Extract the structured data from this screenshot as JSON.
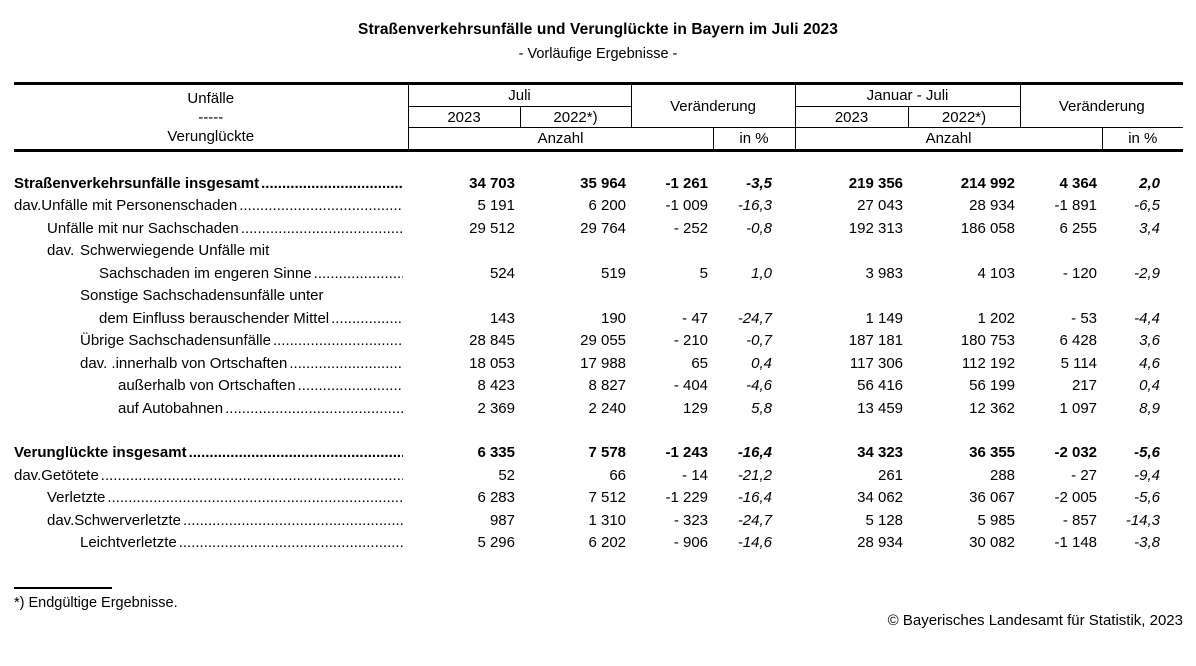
{
  "title": "Straßenverkehrsunfälle und Verunglückte in Bayern im Juli 2023",
  "subtitle": "- Vorläufige Ergebnisse -",
  "header": {
    "stub": {
      "line1": "Unfälle",
      "line2": "-----",
      "line3": "Verunglückte"
    },
    "groups": [
      {
        "period": "Juli",
        "year1": "2023",
        "year2": "2022*)",
        "change": "Veränderung",
        "unit_abs": "Anzahl",
        "unit_pct": "in %"
      },
      {
        "period": "Januar - Juli",
        "year1": "2023",
        "year2": "2022*)",
        "change": "Veränderung",
        "unit_abs": "Anzahl",
        "unit_pct": "in %"
      }
    ]
  },
  "rows": [
    {
      "prefix": "",
      "prefix_indent": 0,
      "label": "Straßenverkehrsunfälle insgesamt",
      "label_indent": 0,
      "bold": true,
      "leader": true,
      "gap": false,
      "values": [
        "34 703",
        "35 964",
        "-1 261",
        "-3,5",
        "219 356",
        "214 992",
        "4 364",
        "2,0"
      ]
    },
    {
      "prefix": "dav.",
      "prefix_indent": 0,
      "label": "Unfälle mit Personenschaden",
      "label_indent": 33,
      "bold": false,
      "leader": true,
      "gap": false,
      "values": [
        "5 191",
        "6 200",
        "-1 009",
        "-16,3",
        "27 043",
        "28 934",
        "-1 891",
        "-6,5"
      ]
    },
    {
      "prefix": "",
      "prefix_indent": 0,
      "label": "Unfälle mit nur Sachschaden",
      "label_indent": 33,
      "bold": false,
      "leader": true,
      "gap": false,
      "values": [
        "29 512",
        "29 764",
        "- 252",
        "-0,8",
        "192 313",
        "186 058",
        "6 255",
        "3,4"
      ]
    },
    {
      "prefix": "dav.",
      "prefix_indent": 33,
      "label": "Schwerwiegende Unfälle mit",
      "label_indent": 66,
      "bold": false,
      "leader": false,
      "gap": false,
      "values": []
    },
    {
      "prefix": "",
      "prefix_indent": 0,
      "label": "Sachschaden im engeren Sinne",
      "label_indent": 85,
      "bold": false,
      "leader": true,
      "gap": false,
      "values": [
        "524",
        "519",
        "5",
        "1,0",
        "3 983",
        "4 103",
        "- 120",
        "-2,9"
      ]
    },
    {
      "prefix": "",
      "prefix_indent": 0,
      "label": "Sonstige Sachschadensunfälle unter",
      "label_indent": 66,
      "bold": false,
      "leader": false,
      "gap": false,
      "values": []
    },
    {
      "prefix": "",
      "prefix_indent": 0,
      "label": "dem Einfluss berauschender Mittel",
      "label_indent": 85,
      "bold": false,
      "leader": true,
      "gap": false,
      "values": [
        "143",
        "190",
        "- 47",
        "-24,7",
        "1 149",
        "1 202",
        "- 53",
        "-4,4"
      ]
    },
    {
      "prefix": "",
      "prefix_indent": 0,
      "label": "Übrige Sachschadensunfälle",
      "label_indent": 66,
      "bold": false,
      "leader": true,
      "gap": false,
      "values": [
        "28 845",
        "29 055",
        "- 210",
        "-0,7",
        "187 181",
        "180 753",
        "6 428",
        "3,6"
      ]
    },
    {
      "prefix": "dav. .",
      "prefix_indent": 66,
      "label": "innerhalb von Ortschaften",
      "label_indent": 104,
      "bold": false,
      "leader": true,
      "gap": false,
      "values": [
        "18 053",
        "17 988",
        "65",
        "0,4",
        "117 306",
        "112 192",
        "5 114",
        "4,6"
      ]
    },
    {
      "prefix": "",
      "prefix_indent": 0,
      "label": "außerhalb von Ortschaften",
      "label_indent": 104,
      "bold": false,
      "leader": true,
      "gap": false,
      "values": [
        "8 423",
        "8 827",
        "- 404",
        "-4,6",
        "56 416",
        "56 199",
        "217",
        "0,4"
      ]
    },
    {
      "prefix": "",
      "prefix_indent": 0,
      "label": "auf Autobahnen",
      "label_indent": 104,
      "bold": false,
      "leader": true,
      "gap": false,
      "values": [
        "2 369",
        "2 240",
        "129",
        "5,8",
        "13 459",
        "12 362",
        "1 097",
        "8,9"
      ]
    },
    {
      "prefix": "",
      "prefix_indent": 0,
      "label": "Verunglückte insgesamt",
      "label_indent": 0,
      "bold": true,
      "leader": true,
      "gap": true,
      "values": [
        "6 335",
        "7 578",
        "-1 243",
        "-16,4",
        "34 323",
        "36 355",
        "-2 032",
        "-5,6"
      ]
    },
    {
      "prefix": "dav.",
      "prefix_indent": 0,
      "label": "Getötete",
      "label_indent": 33,
      "bold": false,
      "leader": true,
      "gap": false,
      "values": [
        "52",
        "66",
        "- 14",
        "-21,2",
        "261",
        "288",
        "- 27",
        "-9,4"
      ]
    },
    {
      "prefix": "",
      "prefix_indent": 0,
      "label": "Verletzte",
      "label_indent": 33,
      "bold": false,
      "leader": true,
      "gap": false,
      "values": [
        "6 283",
        "7 512",
        "-1 229",
        "-16,4",
        "34 062",
        "36 067",
        "-2 005",
        "-5,6"
      ]
    },
    {
      "prefix": "dav.",
      "prefix_indent": 33,
      "label": "Schwerverletzte",
      "label_indent": 66,
      "bold": false,
      "leader": true,
      "gap": false,
      "values": [
        "987",
        "1 310",
        "- 323",
        "-24,7",
        "5 128",
        "5 985",
        "- 857",
        "-14,3"
      ]
    },
    {
      "prefix": "",
      "prefix_indent": 0,
      "label": "Leichtverletzte",
      "label_indent": 66,
      "bold": false,
      "leader": true,
      "gap": false,
      "values": [
        "5 296",
        "6 202",
        "- 906",
        "-14,6",
        "28 934",
        "30 082",
        "-1 148",
        "-3,8"
      ]
    }
  ],
  "footnote": "*) Endgültige Ergebnisse.",
  "copyright": "© Bayerisches Landesamt für Statistik, 2023"
}
